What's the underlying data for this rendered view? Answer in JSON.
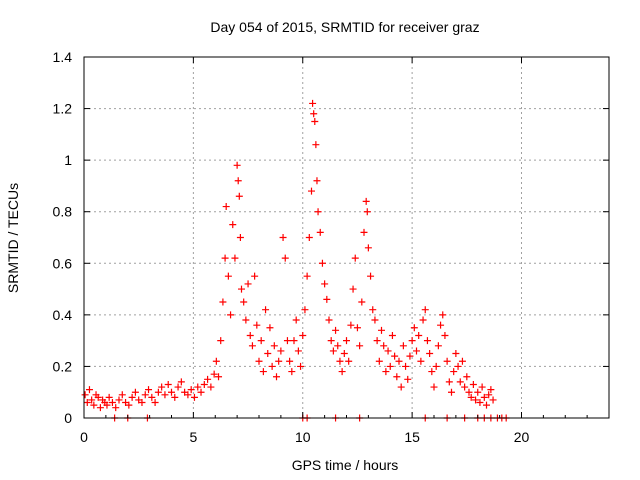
{
  "chart_data": {
    "type": "scatter",
    "title": "Day 054 of 2015, SRMTID for receiver graz",
    "xlabel": "GPS time / hours",
    "ylabel": "SRMTID / TECUs",
    "xlim": [
      0,
      24
    ],
    "ylim": [
      0,
      1.4
    ],
    "xticks": [
      0,
      5,
      10,
      15,
      20
    ],
    "yticks": [
      0,
      0.2,
      0.4,
      0.6,
      0.8,
      1,
      1.2,
      1.4
    ],
    "xtick_labels": [
      "0",
      "5",
      "10",
      "15",
      "20"
    ],
    "ytick_labels": [
      "0",
      "0.2",
      "0.4",
      "0.6",
      "0.8",
      "1",
      "1.2",
      "1.4"
    ],
    "grid": true,
    "marker": "+",
    "series": [
      {
        "color": "#ff0000",
        "points": [
          [
            0.05,
            0.09
          ],
          [
            0.15,
            0.06
          ],
          [
            0.25,
            0.11
          ],
          [
            0.35,
            0.07
          ],
          [
            0.45,
            0.05
          ],
          [
            0.55,
            0.09
          ],
          [
            0.65,
            0.08
          ],
          [
            0.75,
            0.04
          ],
          [
            0.85,
            0.07
          ],
          [
            0.95,
            0.06
          ],
          [
            1.05,
            0.05
          ],
          [
            1.15,
            0.08
          ],
          [
            1.3,
            0.06
          ],
          [
            1.45,
            0.04
          ],
          [
            1.6,
            0.07
          ],
          [
            1.75,
            0.09
          ],
          [
            1.9,
            0.06
          ],
          [
            2.05,
            0.05
          ],
          [
            2.2,
            0.08
          ],
          [
            2.35,
            0.1
          ],
          [
            2.5,
            0.07
          ],
          [
            2.65,
            0.06
          ],
          [
            2.8,
            0.09
          ],
          [
            2.95,
            0.11
          ],
          [
            3.1,
            0.08
          ],
          [
            3.25,
            0.06
          ],
          [
            3.4,
            0.1
          ],
          [
            3.55,
            0.12
          ],
          [
            3.7,
            0.09
          ],
          [
            3.85,
            0.13
          ],
          [
            4.0,
            0.1
          ],
          [
            4.15,
            0.08
          ],
          [
            4.3,
            0.12
          ],
          [
            4.45,
            0.14
          ],
          [
            4.6,
            0.1
          ],
          [
            4.75,
            0.09
          ],
          [
            4.9,
            0.11
          ],
          [
            5.05,
            0.08
          ],
          [
            5.2,
            0.12
          ],
          [
            5.35,
            0.1
          ],
          [
            5.5,
            0.13
          ],
          [
            5.65,
            0.15
          ],
          [
            5.8,
            0.12
          ],
          [
            5.95,
            0.17
          ],
          [
            6.05,
            0.22
          ],
          [
            6.15,
            0.16
          ],
          [
            6.25,
            0.3
          ],
          [
            6.35,
            0.45
          ],
          [
            6.45,
            0.62
          ],
          [
            6.5,
            0.82
          ],
          [
            6.6,
            0.55
          ],
          [
            6.7,
            0.4
          ],
          [
            6.8,
            0.75
          ],
          [
            6.9,
            0.62
          ],
          [
            7.0,
            0.98
          ],
          [
            7.05,
            0.92
          ],
          [
            7.1,
            0.86
          ],
          [
            7.15,
            0.7
          ],
          [
            7.2,
            0.5
          ],
          [
            7.3,
            0.45
          ],
          [
            7.4,
            0.38
          ],
          [
            7.5,
            0.52
          ],
          [
            7.6,
            0.32
          ],
          [
            7.7,
            0.28
          ],
          [
            7.8,
            0.55
          ],
          [
            7.9,
            0.36
          ],
          [
            8.0,
            0.22
          ],
          [
            8.1,
            0.3
          ],
          [
            8.2,
            0.18
          ],
          [
            8.3,
            0.42
          ],
          [
            8.4,
            0.25
          ],
          [
            8.5,
            0.35
          ],
          [
            8.6,
            0.2
          ],
          [
            8.7,
            0.28
          ],
          [
            8.8,
            0.16
          ],
          [
            8.9,
            0.22
          ],
          [
            9.0,
            0.26
          ],
          [
            9.1,
            0.7
          ],
          [
            9.2,
            0.62
          ],
          [
            9.3,
            0.3
          ],
          [
            9.4,
            0.22
          ],
          [
            9.5,
            0.18
          ],
          [
            9.6,
            0.3
          ],
          [
            9.7,
            0.38
          ],
          [
            9.8,
            0.26
          ],
          [
            9.9,
            0.2
          ],
          [
            10.0,
            0.32
          ],
          [
            10.1,
            0.42
          ],
          [
            10.2,
            0.55
          ],
          [
            10.3,
            0.7
          ],
          [
            10.4,
            0.88
          ],
          [
            10.45,
            1.22
          ],
          [
            10.5,
            1.18
          ],
          [
            10.55,
            1.15
          ],
          [
            10.6,
            1.06
          ],
          [
            10.65,
            0.92
          ],
          [
            10.7,
            0.8
          ],
          [
            10.8,
            0.72
          ],
          [
            10.9,
            0.6
          ],
          [
            11.0,
            0.52
          ],
          [
            11.1,
            0.46
          ],
          [
            11.2,
            0.38
          ],
          [
            11.3,
            0.3
          ],
          [
            11.4,
            0.26
          ],
          [
            11.5,
            0.34
          ],
          [
            11.6,
            0.28
          ],
          [
            11.7,
            0.22
          ],
          [
            11.8,
            0.18
          ],
          [
            11.9,
            0.25
          ],
          [
            12.0,
            0.3
          ],
          [
            12.1,
            0.22
          ],
          [
            12.2,
            0.36
          ],
          [
            12.3,
            0.5
          ],
          [
            12.4,
            0.62
          ],
          [
            12.5,
            0.35
          ],
          [
            12.6,
            0.28
          ],
          [
            12.7,
            0.45
          ],
          [
            12.8,
            0.72
          ],
          [
            12.9,
            0.84
          ],
          [
            12.95,
            0.8
          ],
          [
            13.0,
            0.66
          ],
          [
            13.1,
            0.55
          ],
          [
            13.2,
            0.42
          ],
          [
            13.3,
            0.38
          ],
          [
            13.4,
            0.3
          ],
          [
            13.5,
            0.22
          ],
          [
            13.6,
            0.34
          ],
          [
            13.7,
            0.28
          ],
          [
            13.8,
            0.18
          ],
          [
            13.9,
            0.26
          ],
          [
            14.0,
            0.2
          ],
          [
            14.1,
            0.32
          ],
          [
            14.2,
            0.24
          ],
          [
            14.3,
            0.16
          ],
          [
            14.4,
            0.22
          ],
          [
            14.5,
            0.12
          ],
          [
            14.6,
            0.28
          ],
          [
            14.7,
            0.2
          ],
          [
            14.8,
            0.15
          ],
          [
            14.9,
            0.24
          ],
          [
            15.0,
            0.3
          ],
          [
            15.1,
            0.35
          ],
          [
            15.2,
            0.26
          ],
          [
            15.3,
            0.32
          ],
          [
            15.4,
            0.22
          ],
          [
            15.5,
            0.38
          ],
          [
            15.6,
            0.42
          ],
          [
            15.7,
            0.3
          ],
          [
            15.8,
            0.25
          ],
          [
            15.9,
            0.18
          ],
          [
            16.0,
            0.12
          ],
          [
            16.1,
            0.2
          ],
          [
            16.2,
            0.28
          ],
          [
            16.3,
            0.36
          ],
          [
            16.4,
            0.4
          ],
          [
            16.5,
            0.32
          ],
          [
            16.6,
            0.22
          ],
          [
            16.7,
            0.14
          ],
          [
            16.8,
            0.1
          ],
          [
            16.9,
            0.18
          ],
          [
            17.0,
            0.25
          ],
          [
            17.1,
            0.2
          ],
          [
            17.2,
            0.14
          ],
          [
            17.3,
            0.22
          ],
          [
            17.4,
            0.12
          ],
          [
            17.5,
            0.16
          ],
          [
            17.6,
            0.1
          ],
          [
            17.7,
            0.08
          ],
          [
            17.8,
            0.13
          ],
          [
            17.9,
            0.07
          ],
          [
            18.0,
            0.1
          ],
          [
            18.1,
            0.06
          ],
          [
            18.2,
            0.12
          ],
          [
            18.3,
            0.08
          ],
          [
            18.4,
            0.05
          ],
          [
            18.5,
            0.09
          ],
          [
            18.6,
            0.11
          ],
          [
            18.7,
            0.07
          ],
          [
            10.0,
            0.0
          ],
          [
            10.2,
            0.0
          ],
          [
            11.5,
            0.0
          ],
          [
            12.6,
            0.0
          ],
          [
            15.6,
            0.0
          ],
          [
            16.6,
            0.0
          ],
          [
            17.4,
            0.0
          ],
          [
            18.0,
            0.0
          ],
          [
            18.3,
            0.0
          ],
          [
            18.6,
            0.0
          ],
          [
            18.9,
            0.0
          ],
          [
            19.1,
            0.0
          ],
          [
            19.3,
            0.0
          ],
          [
            1.4,
            0.0
          ],
          [
            2.0,
            0.0
          ],
          [
            2.9,
            0.0
          ]
        ]
      }
    ]
  }
}
